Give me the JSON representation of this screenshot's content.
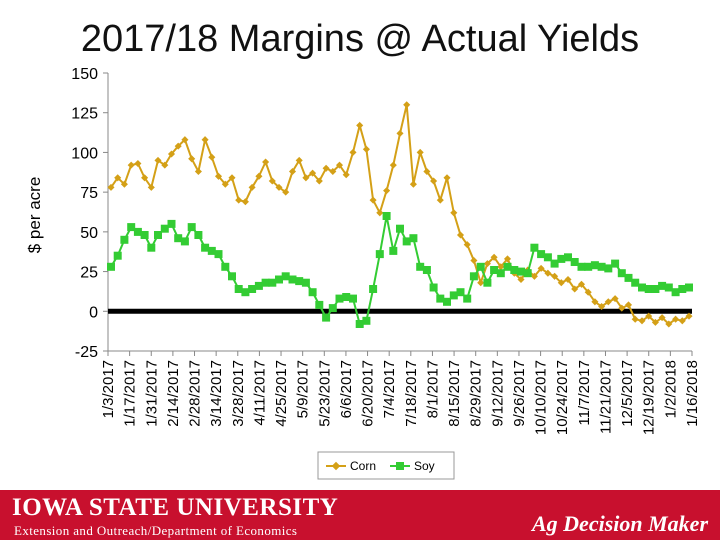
{
  "slide": {
    "title": "2017/18 Margins @ Actual Yields"
  },
  "footer": {
    "university": "IOWA STATE UNIVERSITY",
    "department": "Extension and Outreach/Department of Economics",
    "brand": "Ag Decision Maker",
    "background_color": "#c8102e"
  },
  "chart_data": {
    "type": "line",
    "title": "2017/18 Margins @ Actual Yields",
    "xlabel": "",
    "ylabel": "$ per acre",
    "ylim": [
      -25,
      150
    ],
    "yticks": [
      150,
      125,
      100,
      75,
      50,
      25,
      0,
      -25
    ],
    "grid": false,
    "legend_position": "bottom",
    "zero_line": true,
    "x_tick_labels": [
      "1/3/2017",
      "1/17/2017",
      "1/31/2017",
      "2/14/2017",
      "2/28/2017",
      "3/14/2017",
      "3/28/2017",
      "4/11/2017",
      "4/25/2017",
      "5/9/2017",
      "5/23/2017",
      "6/6/2017",
      "6/20/2017",
      "7/4/2017",
      "7/18/2017",
      "8/1/2017",
      "8/15/2017",
      "8/29/2017",
      "9/12/2017",
      "9/26/2017",
      "10/10/2017",
      "10/24/2017",
      "11/7/2017",
      "11/21/2017",
      "12/5/2017",
      "12/19/2017",
      "1/2/2018",
      "1/16/2018"
    ],
    "series": [
      {
        "name": "Corn",
        "color": "#d4a017",
        "marker": "diamond",
        "values": [
          78,
          84,
          80,
          92,
          93,
          84,
          78,
          95,
          92,
          99,
          104,
          108,
          96,
          88,
          108,
          97,
          85,
          80,
          84,
          70,
          69,
          78,
          85,
          94,
          82,
          78,
          75,
          88,
          95,
          84,
          87,
          82,
          90,
          88,
          92,
          86,
          100,
          117,
          102,
          70,
          62,
          76,
          92,
          112,
          130,
          80,
          100,
          88,
          82,
          70,
          84,
          62,
          48,
          42,
          32,
          18,
          30,
          34,
          28,
          33,
          24,
          20,
          26,
          22,
          27,
          24,
          22,
          18,
          20,
          14,
          17,
          12,
          6,
          3,
          6,
          8,
          2,
          4,
          -5,
          -6,
          -3,
          -7,
          -4,
          -8,
          -5,
          -6,
          -3
        ]
      },
      {
        "name": "Soy",
        "color": "#33cc33",
        "marker": "square",
        "values": [
          28,
          35,
          45,
          53,
          50,
          48,
          40,
          48,
          52,
          55,
          46,
          44,
          53,
          48,
          40,
          38,
          36,
          28,
          22,
          14,
          12,
          14,
          16,
          18,
          18,
          20,
          22,
          20,
          19,
          18,
          12,
          4,
          -4,
          2,
          8,
          9,
          8,
          -8,
          -6,
          14,
          36,
          60,
          38,
          52,
          44,
          46,
          28,
          26,
          15,
          8,
          6,
          10,
          12,
          8,
          22,
          28,
          18,
          26,
          24,
          28,
          26,
          25,
          24,
          40,
          36,
          34,
          30,
          33,
          34,
          31,
          28,
          28,
          29,
          28,
          27,
          30,
          24,
          21,
          18,
          15,
          14,
          14,
          16,
          15,
          12,
          14,
          15
        ]
      }
    ]
  }
}
